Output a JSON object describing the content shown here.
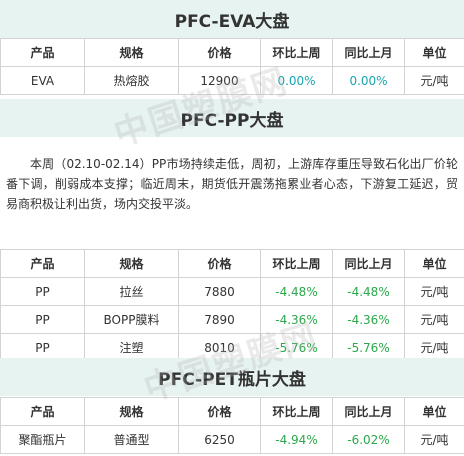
{
  "eva": {
    "title": "PFC-EVA大盘",
    "headers": [
      "产品",
      "规格",
      "价格",
      "环比上周",
      "同比上月",
      "单位"
    ],
    "rows": [
      {
        "product": "EVA",
        "spec": "热熔胶",
        "price": "12900",
        "wow": "0.00%",
        "mom": "0.00%",
        "unit": "元/吨"
      }
    ]
  },
  "pp": {
    "title": "PFC-PP大盘",
    "commentary": "本周（02.10-02.14）PP市场持续走低，周初，上游库存重压导致石化出厂价轮番下调，削弱成本支撑；临近周末，期货低开震荡拖累业者心态，下游复工延迟，贸易商积极让利出货，场内交投平淡。",
    "headers": [
      "产品",
      "规格",
      "价格",
      "环比上周",
      "同比上月",
      "单位"
    ],
    "rows": [
      {
        "product": "PP",
        "spec": "拉丝",
        "price": "7880",
        "wow": "-4.48%",
        "mom": "-4.48%",
        "unit": "元/吨"
      },
      {
        "product": "PP",
        "spec": "BOPP膜料",
        "price": "7890",
        "wow": "-4.36%",
        "mom": "-4.36%",
        "unit": "元/吨"
      },
      {
        "product": "PP",
        "spec": "注塑",
        "price": "8010",
        "wow": "-5.76%",
        "mom": "-5.76%",
        "unit": "元/吨"
      }
    ]
  },
  "pet": {
    "title": "PFC-PET瓶片大盘",
    "headers": [
      "产品",
      "规格",
      "价格",
      "环比上周",
      "同比上月",
      "单位"
    ],
    "rows": [
      {
        "product": "聚酯瓶片",
        "spec": "普通型",
        "price": "6250",
        "wow": "-4.94%",
        "mom": "-6.02%",
        "unit": "元/吨"
      }
    ]
  },
  "watermark": "中国塑膜网",
  "colors": {
    "banner_bg": "#e6f3f1",
    "positive": "#17a5b0",
    "negative": "#2aa84a",
    "border": "#d3d3d3"
  }
}
